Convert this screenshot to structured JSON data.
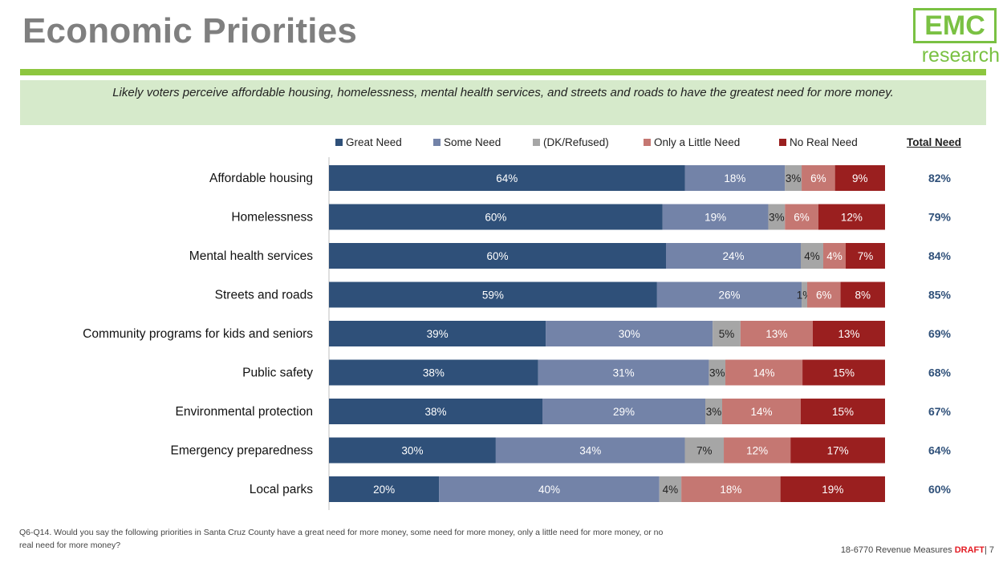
{
  "header": {
    "title": "Economic Priorities",
    "logo_main": "EMC",
    "logo_sub": "research",
    "subtitle": "Likely voters perceive affordable housing, homelessness, mental health services, and streets and roads to have the greatest need for more money."
  },
  "legend": {
    "total_need_header": "Total Need"
  },
  "colors": {
    "great_need": "#2f5079",
    "some_need": "#7383a8",
    "dk_refused": "#a6a6a6",
    "only_a_little_need": "#c57772",
    "no_real_need": "#9a1f1f",
    "total_need_text": "#2f5079",
    "accent_green": "#8dc63f"
  },
  "chart_data": {
    "type": "bar",
    "orientation": "horizontal",
    "stacked": true,
    "categories": [
      "Affordable housing",
      "Homelessness",
      "Mental health services",
      "Streets and roads",
      "Community programs for kids and seniors",
      "Public safety",
      "Environmental protection",
      "Emergency preparedness",
      "Local parks"
    ],
    "series": [
      {
        "name": "Great Need",
        "values": [
          64,
          60,
          60,
          59,
          39,
          38,
          38,
          30,
          20
        ]
      },
      {
        "name": "Some Need",
        "values": [
          18,
          19,
          24,
          26,
          30,
          31,
          29,
          34,
          40
        ]
      },
      {
        "name": "(DK/Refused)",
        "values": [
          3,
          3,
          4,
          1,
          5,
          3,
          3,
          7,
          4
        ]
      },
      {
        "name": "Only a Little Need",
        "values": [
          6,
          6,
          4,
          6,
          13,
          14,
          14,
          12,
          18
        ]
      },
      {
        "name": "No Real Need",
        "values": [
          9,
          12,
          7,
          8,
          13,
          15,
          15,
          17,
          19
        ]
      }
    ],
    "total_need": [
      82,
      79,
      84,
      85,
      69,
      68,
      67,
      64,
      60
    ],
    "value_suffix": "%",
    "legend_position": "top"
  },
  "footer": {
    "question": "Q6-Q14. Would you say the following priorities in Santa Cruz County have a great need for more money, some need for more money, only a little need for more money, or no real need for more money?",
    "project": "18-6770 Revenue Measures ",
    "draft": "DRAFT",
    "page": "| 7"
  }
}
